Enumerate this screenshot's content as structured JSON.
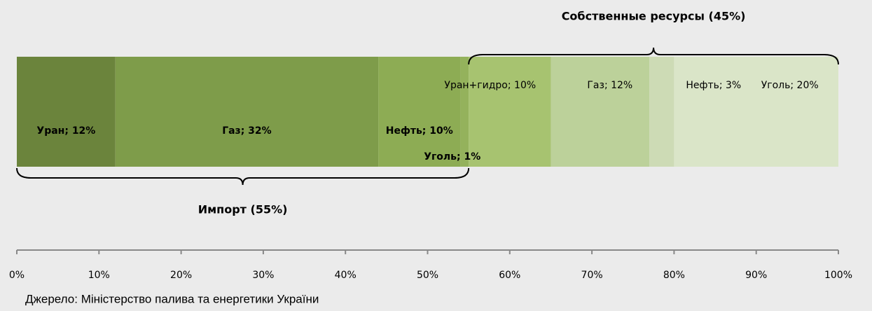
{
  "chart_data": {
    "type": "stacked-bar-horizontal",
    "series": [
      {
        "values": [
          12
        ],
        "value_labels": [
          "Уран; 12%"
        ],
        "color": "#6b843c"
      },
      {
        "values": [
          32
        ],
        "value_labels": [
          "Газ; 32%"
        ],
        "color": "#7e9c4a"
      },
      {
        "values": [
          10
        ],
        "value_labels": [
          "Нефть; 10%"
        ],
        "color": "#8dac54"
      },
      {
        "values": [
          1
        ],
        "value_labels": [
          "Уголь; 1%"
        ],
        "color": "#94b25c"
      },
      {
        "values": [
          10
        ],
        "value_labels": [
          "Уран+гидро; 10%"
        ],
        "color": "#a7c370"
      },
      {
        "values": [
          12
        ],
        "value_labels": [
          "Газ; 12%"
        ],
        "color": "#bcd19a"
      },
      {
        "values": [
          3
        ],
        "value_labels": [
          "Нефть; 3%"
        ],
        "color": "#cddbb5"
      },
      {
        "values": [
          20
        ],
        "value_labels": [
          "Уголь; 20%"
        ],
        "color": "#dae5c8"
      }
    ],
    "annotations": [
      "Импорт (55%)",
      "Собственные ресурсы (45%)"
    ],
    "source": "Джерело: Міністерство палива та енергетики України",
    "xlim": [
      0,
      100
    ],
    "xticks": [
      {
        "value": 0,
        "label": "0%"
      },
      {
        "value": 10,
        "label": "10%"
      },
      {
        "value": 20,
        "label": "20%"
      },
      {
        "value": 30,
        "label": "30%"
      },
      {
        "value": 40,
        "label": "40%"
      },
      {
        "value": 50,
        "label": "50%"
      },
      {
        "value": 60,
        "label": "60%"
      },
      {
        "value": 70,
        "label": "70%"
      },
      {
        "value": 80,
        "label": "80%"
      },
      {
        "value": 90,
        "label": "90%"
      },
      {
        "value": 100,
        "label": "100%"
      }
    ]
  }
}
